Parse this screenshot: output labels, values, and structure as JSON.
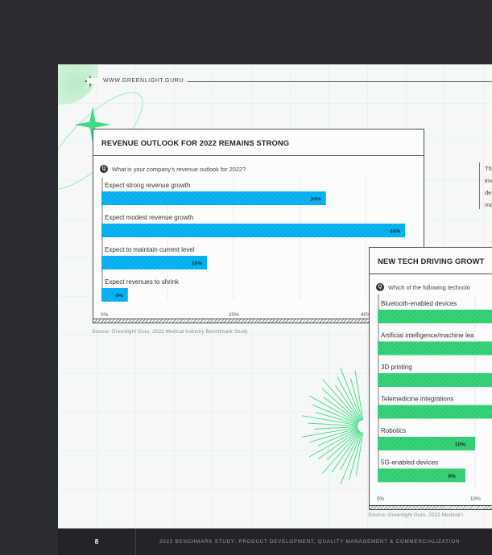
{
  "header": {
    "site": "WWW.GREENLIGHT.GURU"
  },
  "side_text_lines": [
    "The",
    "inve",
    "dem",
    "mac"
  ],
  "charts": {
    "revenue": {
      "title": "REVENUE OUTLOOK FOR 2022 REMAINS STRONG",
      "question": "What is your company's revenue outlook for 2022?",
      "source": "Source: Greenlight Guru, 2022 Medical Industry Benchmark Study"
    },
    "tech": {
      "title": "NEW TECH DRIVING GROWT",
      "question": "Which of the following technolo",
      "source": "Source: Greenlight Guru, 2022 Medical I"
    }
  },
  "colors": {
    "blue": "#00aeef",
    "green": "#2ecc71",
    "accent": "#3ddc84"
  },
  "footer": {
    "page_number": "8",
    "text": "2022 BENCHMARK STUDY: PRODUCT DEVELOPMENT, QUALITY MANAGEMENT & COMMERCIALIZATION"
  },
  "chart_data": [
    {
      "type": "bar",
      "orientation": "horizontal",
      "title": "REVENUE OUTLOOK FOR 2022 REMAINS STRONG",
      "categories": [
        "Expect strong revenue growth",
        "Expect modest revenue growth",
        "Expect to maintain current level",
        "Expect revenues to shrink"
      ],
      "values": [
        34,
        46,
        16,
        4
      ],
      "value_labels": [
        "34%",
        "46%",
        "16%",
        "4%"
      ],
      "x_ticks": [
        "0%",
        "20%",
        "40%"
      ],
      "xlim": [
        0,
        50
      ],
      "grid": true,
      "color": "#00aeef"
    },
    {
      "type": "bar",
      "orientation": "horizontal",
      "title": "NEW TECH DRIVING GROWT",
      "categories": [
        "Bluetooth-enabled devices",
        "Artificial intelligence/machine lea",
        "3D printing",
        "Telemedicine integrations",
        "Robotics",
        "5G-enabled devices"
      ],
      "values": [
        null,
        null,
        null,
        null,
        10,
        9
      ],
      "value_labels": [
        "",
        "",
        "",
        "",
        "10%",
        "9%"
      ],
      "x_ticks": [
        "0%",
        "10%"
      ],
      "grid": true,
      "color": "#2ecc71"
    }
  ]
}
